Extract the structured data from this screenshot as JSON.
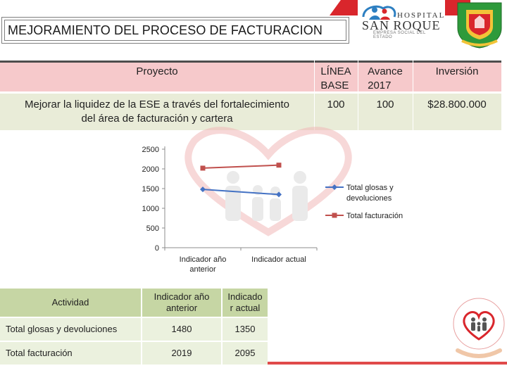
{
  "title": "MEJORAMIENTO DEL PROCESO DE FACTURACION",
  "logo": {
    "line1": "HOSPITAL",
    "line2": "SAN ROQUE",
    "subtitle": "EMPRESA SOCIAL DEL ESTADO"
  },
  "project_table": {
    "headers": {
      "proyecto": "Proyecto",
      "linea_base": [
        "LÍNEA",
        "BASE"
      ],
      "avance": [
        "Avance",
        "2017"
      ],
      "inversion": "Inversión"
    },
    "row": {
      "proyecto": [
        "Mejorar la liquidez de la ESE a través del fortalecimiento",
        "del área de facturación y cartera"
      ],
      "linea_base": "100",
      "avance": "100",
      "inversion": "$28.800.000"
    }
  },
  "chart_data": {
    "type": "line",
    "categories": [
      "Indicador año anterior",
      "Indicador actual"
    ],
    "category_lines": [
      [
        "Indicador año",
        "anterior"
      ],
      [
        "Indicador actual"
      ]
    ],
    "series": [
      {
        "name": "Total glosas y devoluciones",
        "legend_lines": [
          "Total glosas y",
          "devoluciones"
        ],
        "values": [
          1480,
          1350
        ],
        "color": "#4472c4",
        "marker": "diamond"
      },
      {
        "name": "Total facturación",
        "legend_lines": [
          "Total facturación"
        ],
        "values": [
          2019,
          2095
        ],
        "color": "#c0504d",
        "marker": "square"
      }
    ],
    "yticks": [
      "0",
      "500",
      "1000",
      "1500",
      "2000",
      "2500"
    ],
    "ylim": [
      0,
      2500
    ],
    "grid": false,
    "legend": "right"
  },
  "activity_table": {
    "headers": {
      "actividad": "Actividad",
      "anterior": [
        "Indicador año",
        "anterior"
      ],
      "actual": [
        "Indicado",
        "r actual"
      ]
    },
    "rows": [
      {
        "actividad": "Total glosas y devoluciones",
        "anterior": "1480",
        "actual": "1350"
      },
      {
        "actividad": "Total facturación",
        "anterior": "2019",
        "actual": "2095"
      }
    ]
  },
  "colors": {
    "accent_red": "#d9262c",
    "header_pink": "#f6c9cb",
    "body_beige": "#e9ecd8",
    "table_green": "#c6d6a4",
    "table_green_light": "#ebf1de"
  }
}
